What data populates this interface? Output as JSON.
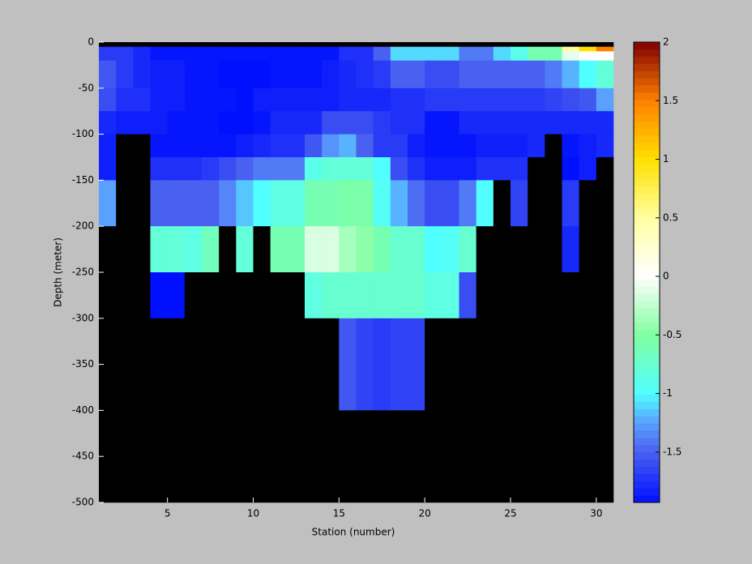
{
  "chart_data": {
    "type": "heatmap",
    "xlabel": "Station (number)",
    "ylabel": "Depth (meter)",
    "x_edges": [
      1,
      2,
      3,
      4,
      5,
      6,
      7,
      8,
      9,
      10,
      11,
      12,
      13,
      14,
      15,
      16,
      17,
      18,
      19,
      20,
      21,
      22,
      23,
      24,
      25,
      26,
      27,
      28,
      29,
      30,
      31
    ],
    "y_edges": [
      0,
      -5,
      -10,
      -20,
      -30,
      -50,
      -75,
      -100,
      -125,
      -150,
      -200,
      -250,
      -300,
      -400,
      -500
    ],
    "xlim": [
      1,
      31
    ],
    "ylim": [
      -500,
      0
    ],
    "xticks": [
      5,
      10,
      15,
      20,
      25,
      30
    ],
    "yticks": [
      0,
      -50,
      -100,
      -150,
      -200,
      -250,
      -300,
      -350,
      -400,
      -450,
      -500
    ],
    "zlim": [
      -1.93,
      2
    ],
    "colorbar_ticks": [
      -1.5,
      -1,
      -0.5,
      0,
      0.5,
      1,
      1.5,
      2
    ],
    "nan_color": "#000000",
    "colormap": [
      [
        -1.93,
        "#0010ff"
      ],
      [
        -1.5,
        "#4a60f0"
      ],
      [
        -1.25,
        "#5aa0ff"
      ],
      [
        -1,
        "#50ffff"
      ],
      [
        -0.5,
        "#80ffa0"
      ],
      [
        0,
        "#ffffff"
      ],
      [
        0.5,
        "#ffffa0"
      ],
      [
        1,
        "#ffe000"
      ],
      [
        1.5,
        "#ff8000"
      ],
      [
        2,
        "#800000"
      ]
    ],
    "values": [
      [
        null,
        null,
        null,
        null,
        null,
        null,
        null,
        null,
        null,
        null,
        null,
        null,
        null,
        null,
        null,
        null,
        null,
        null,
        null,
        null,
        null,
        null,
        null,
        null,
        null,
        null,
        null,
        null,
        null,
        null
      ],
      [
        -1.7,
        -1.7,
        -1.8,
        -1.9,
        -1.9,
        -1.9,
        -1.9,
        -1.9,
        -1.9,
        -1.9,
        -1.9,
        -1.9,
        -1.9,
        -1.9,
        -1.75,
        -1.75,
        -1.5,
        -1.1,
        -1.1,
        -1.1,
        -1.1,
        -1.4,
        -1.4,
        -1.1,
        -0.9,
        -0.6,
        -0.6,
        0.5,
        1.0,
        1.5
      ],
      [
        -1.7,
        -1.7,
        -1.8,
        -1.9,
        -1.9,
        -1.9,
        -1.9,
        -1.9,
        -1.9,
        -1.9,
        -1.9,
        -1.9,
        -1.9,
        -1.9,
        -1.75,
        -1.75,
        -1.5,
        -1.1,
        -1.1,
        -1.1,
        -1.1,
        -1.4,
        -1.4,
        -1.1,
        -0.9,
        -0.6,
        -0.6,
        -0.1,
        0.0,
        0.0
      ],
      [
        -1.55,
        -1.7,
        -1.8,
        -1.85,
        -1.85,
        -1.9,
        -1.9,
        -1.95,
        -1.95,
        -1.95,
        -1.9,
        -1.9,
        -1.9,
        -1.85,
        -1.8,
        -1.75,
        -1.7,
        -1.5,
        -1.5,
        -1.6,
        -1.6,
        -1.5,
        -1.5,
        -1.5,
        -1.5,
        -1.5,
        -1.4,
        -1.2,
        -1.0,
        -0.8
      ],
      [
        -1.55,
        -1.7,
        -1.8,
        -1.85,
        -1.85,
        -1.9,
        -1.9,
        -1.95,
        -1.95,
        -1.95,
        -1.9,
        -1.9,
        -1.9,
        -1.85,
        -1.8,
        -1.75,
        -1.7,
        -1.5,
        -1.5,
        -1.6,
        -1.6,
        -1.5,
        -1.5,
        -1.5,
        -1.5,
        -1.5,
        -1.4,
        -1.2,
        -1.0,
        -0.8
      ],
      [
        -1.6,
        -1.75,
        -1.75,
        -1.85,
        -1.85,
        -1.9,
        -1.9,
        -1.9,
        -1.95,
        -1.85,
        -1.85,
        -1.85,
        -1.85,
        -1.85,
        -1.8,
        -1.8,
        -1.8,
        -1.75,
        -1.75,
        -1.7,
        -1.7,
        -1.7,
        -1.7,
        -1.7,
        -1.7,
        -1.7,
        -1.65,
        -1.6,
        -1.55,
        -1.25
      ],
      [
        -1.8,
        -1.85,
        -1.85,
        -1.85,
        -1.9,
        -1.9,
        -1.9,
        -1.95,
        -1.95,
        -1.9,
        -1.8,
        -1.8,
        -1.8,
        -1.6,
        -1.6,
        -1.6,
        -1.7,
        -1.75,
        -1.75,
        -1.9,
        -1.9,
        -1.8,
        -1.8,
        -1.8,
        -1.8,
        -1.8,
        -1.8,
        -1.8,
        -1.8,
        -1.8
      ],
      [
        -1.85,
        null,
        null,
        -1.9,
        -1.9,
        -1.9,
        -1.9,
        -1.9,
        -1.85,
        -1.8,
        -1.75,
        -1.75,
        -1.55,
        -1.3,
        -1.2,
        -1.5,
        -1.7,
        -1.7,
        -1.85,
        -1.9,
        -1.9,
        -1.9,
        -1.85,
        -1.85,
        -1.85,
        -1.8,
        null,
        -1.9,
        -1.85,
        -1.8
      ],
      [
        -1.85,
        null,
        null,
        -1.75,
        -1.75,
        -1.75,
        -1.7,
        -1.6,
        -1.5,
        -1.4,
        -1.4,
        -1.4,
        -0.9,
        -0.8,
        -0.8,
        -0.8,
        -1.0,
        -1.6,
        -1.75,
        -1.85,
        -1.85,
        -1.85,
        -1.75,
        -1.75,
        -1.75,
        null,
        null,
        -1.95,
        -1.85,
        null
      ],
      [
        -1.25,
        null,
        null,
        -1.5,
        -1.5,
        -1.5,
        -1.5,
        -1.35,
        -1.15,
        -1.0,
        -0.85,
        -0.85,
        -0.6,
        -0.6,
        -0.55,
        -0.55,
        -0.95,
        -1.2,
        -1.45,
        -1.6,
        -1.6,
        -1.4,
        -1.0,
        null,
        -1.65,
        null,
        null,
        -1.7,
        null,
        null
      ],
      [
        null,
        null,
        null,
        -0.8,
        -0.8,
        -0.85,
        -0.65,
        null,
        -0.8,
        null,
        -0.6,
        -0.6,
        -0.15,
        -0.15,
        -0.35,
        -0.45,
        -0.6,
        -0.75,
        -0.75,
        -1.0,
        -0.95,
        -0.75,
        null,
        null,
        null,
        null,
        null,
        -1.8,
        null,
        null
      ],
      [
        null,
        null,
        null,
        -1.95,
        -1.95,
        null,
        null,
        null,
        null,
        null,
        null,
        null,
        -0.85,
        -0.75,
        -0.75,
        -0.75,
        -0.75,
        -0.75,
        -0.75,
        -0.85,
        -0.85,
        -1.6,
        null,
        null,
        null,
        null,
        null,
        null,
        null,
        null
      ],
      [
        null,
        null,
        null,
        null,
        null,
        null,
        null,
        null,
        null,
        null,
        null,
        null,
        null,
        null,
        -1.55,
        -1.65,
        -1.7,
        -1.65,
        -1.65,
        null,
        null,
        null,
        null,
        null,
        null,
        null,
        null,
        null,
        null,
        null
      ],
      [
        null,
        null,
        null,
        null,
        null,
        null,
        null,
        null,
        null,
        null,
        null,
        null,
        null,
        null,
        null,
        null,
        null,
        null,
        null,
        null,
        null,
        null,
        null,
        null,
        null,
        null,
        null,
        null,
        null,
        null
      ]
    ]
  }
}
